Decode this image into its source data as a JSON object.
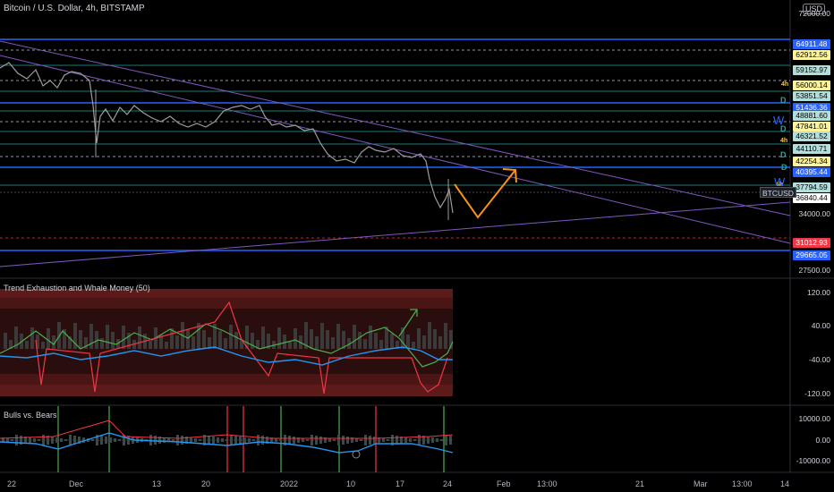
{
  "header": {
    "title": "Bitcoin / U.S. Dollar, 4h, BITSTAMP",
    "currency": "USD"
  },
  "price_axis": {
    "ticks": [
      "72000.00",
      "34000.00",
      "27500.00"
    ],
    "tags": [
      {
        "label": "64911.48",
        "bg": "#2962ff",
        "fg": "#ffffff"
      },
      {
        "label": "62912.56",
        "bg": "#fff59d",
        "fg": "#000000"
      },
      {
        "label": "59152.97",
        "bg": "#b2dfdb",
        "fg": "#000000"
      },
      {
        "label": "56000.14",
        "bg": "#fff59d",
        "fg": "#000000"
      },
      {
        "label": "53851.54",
        "bg": "#b2dfdb",
        "fg": "#000000"
      },
      {
        "label": "51436.36",
        "bg": "#2962ff",
        "fg": "#ffffff"
      },
      {
        "label": "48881.60",
        "bg": "#b2dfdb",
        "fg": "#000000"
      },
      {
        "label": "47841.01",
        "bg": "#fff59d",
        "fg": "#000000"
      },
      {
        "label": "46321.52",
        "bg": "#b2dfdb",
        "fg": "#000000"
      },
      {
        "label": "44110.71",
        "bg": "#b2dfdb",
        "fg": "#000000"
      },
      {
        "label": "42254.34",
        "bg": "#fff59d",
        "fg": "#000000"
      },
      {
        "label": "40395.44",
        "bg": "#2962ff",
        "fg": "#ffffff"
      },
      {
        "label": "37794.59",
        "bg": "#b2dfdb",
        "fg": "#000000"
      },
      {
        "label": "36840.44",
        "bg": "#ffffff",
        "fg": "#000000"
      },
      {
        "label": "31012.93",
        "bg": "#f23645",
        "fg": "#ffffff"
      },
      {
        "label": "29665.05",
        "bg": "#2962ff",
        "fg": "#ffffff"
      }
    ],
    "symbol_tag": "BTCUSD"
  },
  "level_markers": [
    "4h",
    "D",
    "W",
    "D",
    "4h",
    "D",
    "D",
    "4h",
    "W"
  ],
  "indicator1": {
    "title": "Trend Exhaustion and Whale Money (50)",
    "ticks": [
      "120.00",
      "40.00",
      "-40.00",
      "-120.00"
    ]
  },
  "indicator2": {
    "title": "Bulls vs. Bears",
    "ticks": [
      "10000.00",
      "0.00",
      "-10000.00"
    ]
  },
  "time_axis": [
    "22",
    "Dec",
    "13",
    "20",
    "2022",
    "10",
    "17",
    "24",
    "Feb",
    "13:00",
    "21",
    "Mar",
    "13:00",
    "14"
  ],
  "colors": {
    "accent": "#2962ff",
    "bull": "#4caf50",
    "bear": "#f23645",
    "projection": "#f7931a",
    "trendline": "#7e57c2"
  }
}
